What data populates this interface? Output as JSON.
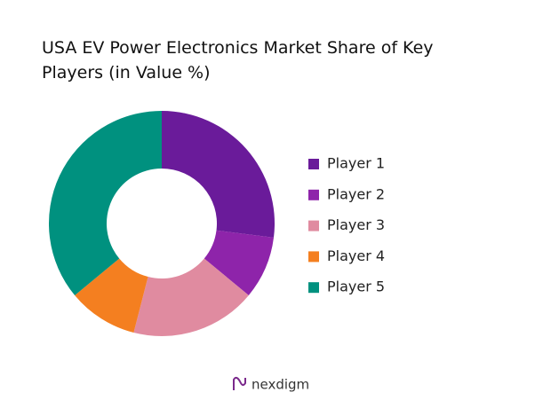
{
  "chart_data": {
    "type": "donut",
    "title": "USA EV Power Electronics Market Share of Key Players (in Value %)",
    "categories": [
      "Player 1",
      "Player 2",
      "Player 3",
      "Player 4",
      "Player 5"
    ],
    "values": [
      27,
      9,
      18,
      10,
      36
    ],
    "colors": [
      "#6a1b9a",
      "#8e24aa",
      "#e08ba0",
      "#f47f20",
      "#00917f"
    ],
    "legend": "right"
  },
  "brand": "nexdigm"
}
